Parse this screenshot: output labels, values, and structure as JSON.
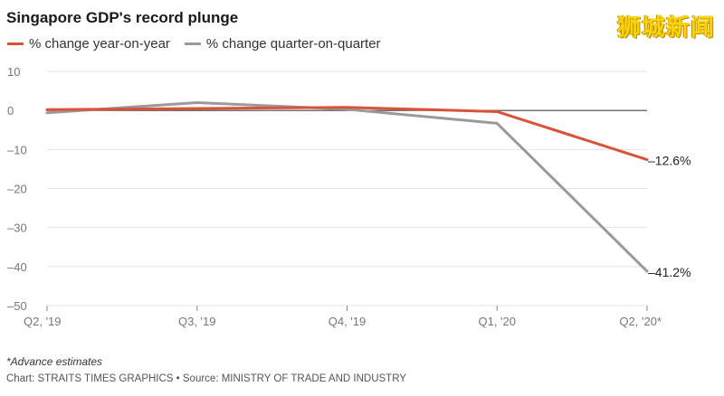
{
  "watermark": "狮城新闻",
  "chart_data": {
    "type": "line",
    "title": "Singapore GDP's record plunge",
    "categories": [
      "Q2, '19",
      "Q3, '19",
      "Q4, '19",
      "Q1, '20",
      "Q2, '20*"
    ],
    "series": [
      {
        "name": "% change year-on-year",
        "color": "#d9533a",
        "values": [
          0.2,
          0.5,
          0.8,
          -0.3,
          -12.6
        ],
        "end_label": "–12.6%"
      },
      {
        "name": "% change quarter-on-quarter",
        "color": "#9a9a9a",
        "values": [
          -0.6,
          2.0,
          0.3,
          -3.3,
          -41.2
        ],
        "end_label": "–41.2%"
      }
    ],
    "ylim": [
      -50,
      10
    ],
    "yticks": [
      10,
      0,
      -10,
      -20,
      -30,
      -40,
      -50
    ],
    "ytick_labels": [
      "10",
      "0",
      "–10",
      "–20",
      "–30",
      "–40",
      "–50"
    ],
    "grid": "horizontal",
    "legend": "top-left",
    "footnote": "*Advance estimates",
    "credit": "Chart: STRAITS TIMES GRAPHICS • Source: MINISTRY OF TRADE AND INDUSTRY"
  }
}
